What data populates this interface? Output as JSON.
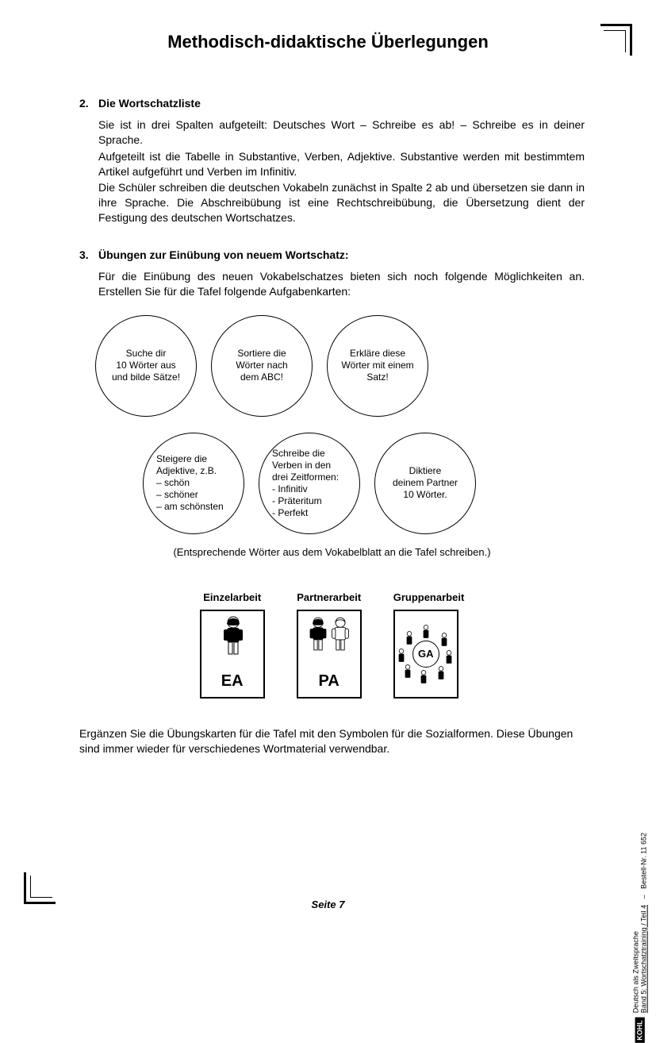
{
  "title": "Methodisch-didaktische Überlegungen",
  "section2": {
    "num": "2.",
    "heading": "Die Wortschatzliste",
    "p1": "Sie ist in drei Spalten aufgeteilt: Deutsches Wort – Schreibe es ab! – Schreibe es in deiner Sprache.",
    "p2": "Aufgeteilt ist die Tabelle in Substantive, Verben, Adjektive. Substantive werden mit bestimmtem Artikel aufgeführt und Verben im Infinitiv.",
    "p3": "Die Schüler schreiben die deutschen Vokabeln zunächst in Spalte 2 ab und übersetzen sie dann in ihre Sprache. Die Abschreibübung ist eine Rechtschreibübung, die Übersetzung dient der Festigung des deutschen Wortschatzes."
  },
  "section3": {
    "num": "3.",
    "heading": "Übungen zur Einübung von neuem Wortschatz:",
    "intro": "Für die Einübung des neuen Vokabelschatzes bieten sich noch folgende Möglichkeiten an. Erstellen Sie für die Tafel folgende Aufgabenkarten:"
  },
  "circles_top": [
    "Suche dir\n10 Wörter aus\nund bilde Sätze!",
    "Sortiere die\nWörter nach\ndem ABC!",
    "Erkläre diese\nWörter mit einem\nSatz!"
  ],
  "circles_bottom": [
    "Steigere die\nAdjektive, z.B.\n– schön\n– schöner\n– am schönsten",
    "Schreibe die\nVerben in den\ndrei Zeitformen:\n - Infinitiv\n - Präteritum\n - Perfekt",
    "Diktiere\ndeinem Partner\n10 Wörter."
  ],
  "note": "(Entsprechende Wörter aus dem Vokabelblatt an die Tafel schreiben.)",
  "modes": [
    {
      "label": "Einzelarbeit",
      "abbr": "EA"
    },
    {
      "label": "Partnerarbeit",
      "abbr": "PA"
    },
    {
      "label": "Gruppenarbeit",
      "abbr": "GA"
    }
  ],
  "closing": "Ergänzen Sie die Übungskarten für die Tafel mit den Symbolen für die Sozialformen. Diese Übungen sind immer wieder für verschiedenes Wortmaterial verwendbar.",
  "page_num": "Seite 7",
  "side": {
    "logo": "KOHL",
    "line1": "Deutsch als Zweitsprache",
    "line2_pre": "Band 5:",
    "line2": "Wortschatztraining / Teil 4",
    "sep": "–",
    "order": "Bestell-Nr. 11 652"
  }
}
